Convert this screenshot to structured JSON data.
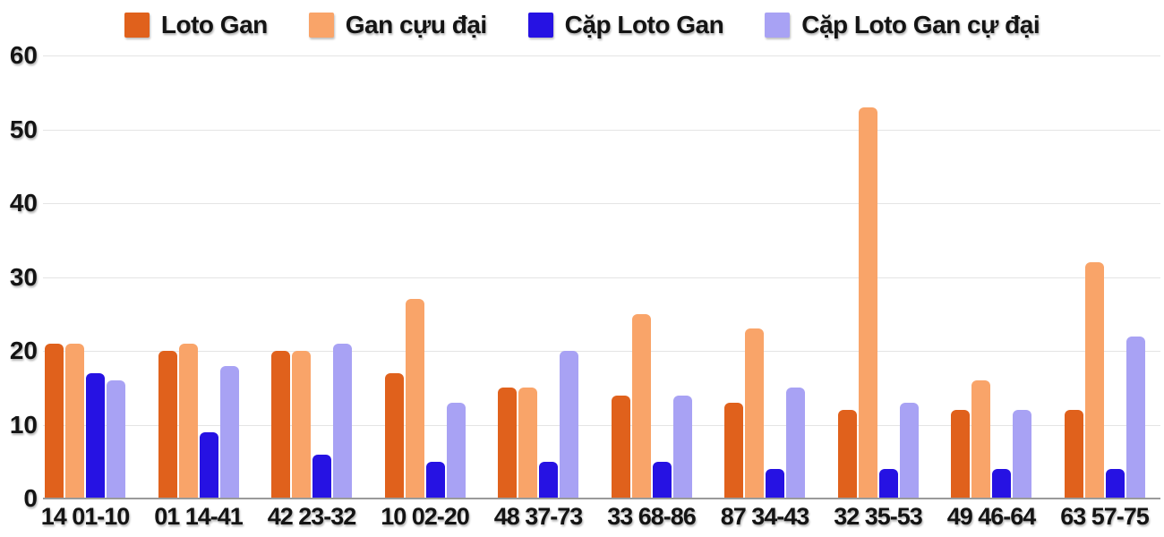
{
  "chart_data": {
    "type": "bar",
    "title": "",
    "xlabel": "",
    "ylabel": "",
    "categories": [
      "14 01-10",
      "01 14-41",
      "42 23-32",
      "10 02-20",
      "48 37-73",
      "33 68-86",
      "87 34-43",
      "32 35-53",
      "49 46-64",
      "63 57-75"
    ],
    "series": [
      {
        "name": "Loto Gan",
        "color": "#e0611c",
        "values": [
          21,
          20,
          20,
          17,
          15,
          14,
          13,
          12,
          12,
          12
        ]
      },
      {
        "name": "Gan cựu đại",
        "color": "#f9a469",
        "values": [
          21,
          21,
          20,
          27,
          15,
          25,
          23,
          53,
          16,
          32
        ]
      },
      {
        "name": "Cặp Loto Gan",
        "color": "#2612e3",
        "values": [
          17,
          9,
          6,
          5,
          5,
          5,
          4,
          4,
          4,
          4
        ]
      },
      {
        "name": "Cặp Loto Gan cự đại",
        "color": "#a8a2f4",
        "values": [
          16,
          18,
          21,
          13,
          20,
          14,
          15,
          13,
          12,
          22
        ]
      }
    ],
    "ylim": [
      0,
      60
    ],
    "yticks": [
      0,
      10,
      20,
      30,
      40,
      50,
      60
    ],
    "grid": true,
    "legend_position": "top"
  }
}
